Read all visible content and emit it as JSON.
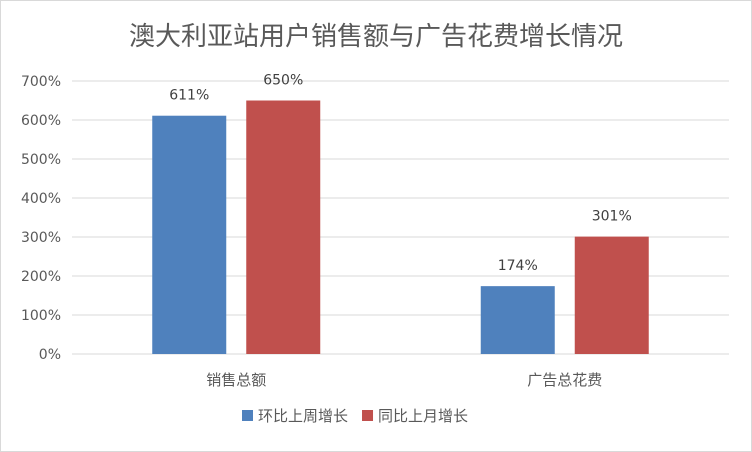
{
  "chart_data": {
    "type": "bar",
    "title": "澳大利亚站用户销售额与广告花费增长情况",
    "categories": [
      "销售总额",
      "广告总花费"
    ],
    "series": [
      {
        "name": "环比上周增长",
        "values": [
          611,
          174
        ],
        "color": "#4F81BD"
      },
      {
        "name": "同比上月增长",
        "values": [
          650,
          301
        ],
        "color": "#C0504D"
      }
    ],
    "ylim": [
      0,
      700
    ],
    "ytick_step": 100,
    "value_suffix": "%",
    "gridlines": true,
    "legend_position": "bottom"
  }
}
